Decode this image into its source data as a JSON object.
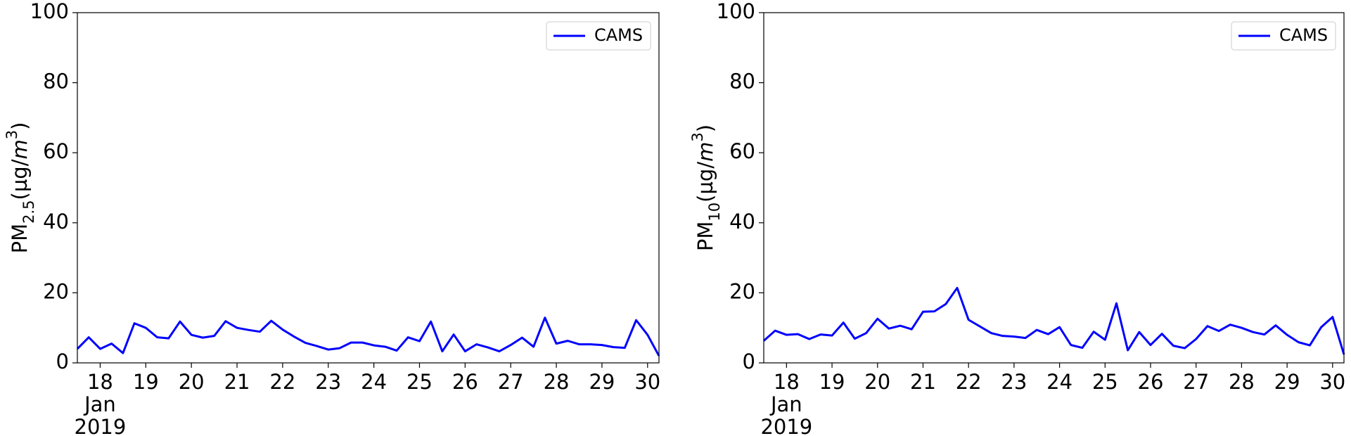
{
  "chart_data": [
    {
      "type": "line",
      "ylabel": [
        "PM",
        "2.5",
        "(µg/",
        "m",
        "3",
        ")"
      ],
      "x": [
        17.5,
        17.75,
        18,
        18.25,
        18.5,
        18.75,
        19,
        19.25,
        19.5,
        19.75,
        20,
        20.25,
        20.5,
        20.75,
        21,
        21.25,
        21.5,
        21.75,
        22,
        22.25,
        22.5,
        22.75,
        23,
        23.25,
        23.5,
        23.75,
        24,
        24.25,
        24.5,
        24.75,
        25,
        25.25,
        25.5,
        25.75,
        26,
        26.25,
        26.5,
        26.75,
        27,
        27.25,
        27.5,
        27.75,
        28,
        28.25,
        28.5,
        28.75,
        29,
        29.25,
        29.5,
        29.75,
        30,
        30.25
      ],
      "series": [
        {
          "name": "CAMS",
          "color": "#0000ff",
          "values": [
            4,
            7.3,
            4,
            5.5,
            2.8,
            11.3,
            10,
            7.3,
            7,
            11.8,
            8,
            7.2,
            7.7,
            11.9,
            10,
            9.4,
            8.9,
            12,
            9.5,
            7.5,
            5.7,
            4.8,
            3.8,
            4.2,
            5.8,
            5.8,
            5,
            4.6,
            3.5,
            7.3,
            6.2,
            11.8,
            3.3,
            8.1,
            3.3,
            5.3,
            4.4,
            3.3,
            5.1,
            7.2,
            4.6,
            12.9,
            5.5,
            6.3,
            5.3,
            5.3,
            5.1,
            4.5,
            4.3,
            12.2,
            8,
            2
          ]
        }
      ],
      "xlim": [
        17.5,
        30.25
      ],
      "xticks": [
        18,
        19,
        20,
        21,
        22,
        23,
        24,
        25,
        26,
        27,
        28,
        29,
        30
      ],
      "x_date_label": [
        "Jan",
        "2019"
      ],
      "ylim": [
        0,
        100
      ],
      "yticks": [
        0,
        20,
        40,
        60,
        80,
        100
      ],
      "legend": "upper right"
    },
    {
      "type": "line",
      "ylabel": [
        "PM",
        "10",
        "(µg/",
        "m",
        "3",
        ")"
      ],
      "x": [
        17.5,
        17.75,
        18,
        18.25,
        18.5,
        18.75,
        19,
        19.25,
        19.5,
        19.75,
        20,
        20.25,
        20.5,
        20.75,
        21,
        21.25,
        21.5,
        21.75,
        22,
        22.25,
        22.5,
        22.75,
        23,
        23.25,
        23.5,
        23.75,
        24,
        24.25,
        24.5,
        24.75,
        25,
        25.25,
        25.5,
        25.75,
        26,
        26.25,
        26.5,
        26.75,
        27,
        27.25,
        27.5,
        27.75,
        28,
        28.25,
        28.5,
        28.75,
        29,
        29.25,
        29.5,
        29.75,
        30,
        30.25
      ],
      "series": [
        {
          "name": "CAMS",
          "color": "#0000ff",
          "values": [
            6.3,
            9.2,
            8,
            8.2,
            6.8,
            8.1,
            7.8,
            11.5,
            6.9,
            8.5,
            12.6,
            9.8,
            10.6,
            9.6,
            14.6,
            14.7,
            16.8,
            21.4,
            12.3,
            10.4,
            8.5,
            7.7,
            7.5,
            7.1,
            9.4,
            8.2,
            10.2,
            5.1,
            4.3,
            8.9,
            6.6,
            17,
            3.6,
            8.8,
            5.1,
            8.3,
            4.9,
            4.2,
            6.8,
            10.5,
            9.1,
            10.9,
            10,
            8.8,
            8.1,
            10.7,
            8,
            5.9,
            5,
            10.2,
            13.1,
            2.4
          ]
        }
      ],
      "xlim": [
        17.5,
        30.25
      ],
      "xticks": [
        18,
        19,
        20,
        21,
        22,
        23,
        24,
        25,
        26,
        27,
        28,
        29,
        30
      ],
      "x_date_label": [
        "Jan",
        "2019"
      ],
      "ylim": [
        0,
        100
      ],
      "yticks": [
        0,
        20,
        40,
        60,
        80,
        100
      ],
      "legend": "upper right"
    }
  ]
}
